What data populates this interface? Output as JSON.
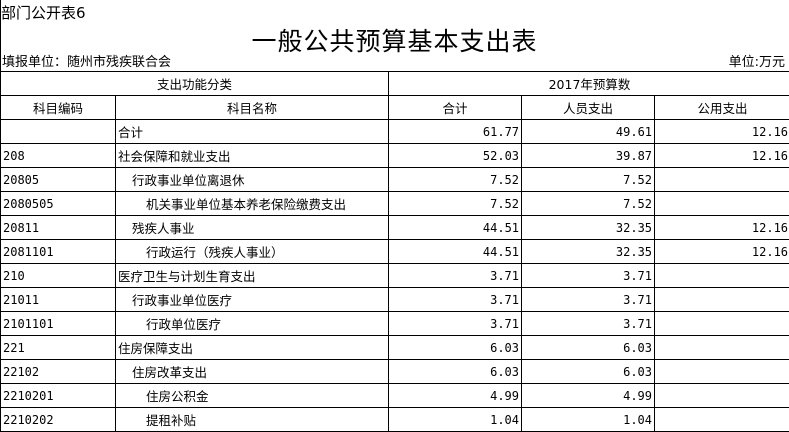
{
  "corner_label": "部门公开表6",
  "title": "一般公共预算基本支出表",
  "unit_left": "填报单位：随州市残疾联合会",
  "unit_right": "单位:万元",
  "header": {
    "group_left": "支出功能分类",
    "group_right": "2017年预算数",
    "columns": [
      "科目编码",
      "科目名称",
      "合计",
      "人员支出",
      "公用支出"
    ]
  },
  "rows": [
    {
      "code": "",
      "name": "合计",
      "level": 0,
      "total": "61.77",
      "personnel": "49.61",
      "public": "12.16"
    },
    {
      "code": "208",
      "name": "社会保障和就业支出",
      "level": 0,
      "total": "52.03",
      "personnel": "39.87",
      "public": "12.16"
    },
    {
      "code": "20805",
      "name": "行政事业单位离退休",
      "level": 1,
      "total": "7.52",
      "personnel": "7.52",
      "public": ""
    },
    {
      "code": "2080505",
      "name": "机关事业单位基本养老保险缴费支出",
      "level": 2,
      "total": "7.52",
      "personnel": "7.52",
      "public": ""
    },
    {
      "code": "20811",
      "name": "残疾人事业",
      "level": 1,
      "total": "44.51",
      "personnel": "32.35",
      "public": "12.16"
    },
    {
      "code": "2081101",
      "name": "行政运行（残疾人事业）",
      "level": 2,
      "total": "44.51",
      "personnel": "32.35",
      "public": "12.16"
    },
    {
      "code": "210",
      "name": "医疗卫生与计划生育支出",
      "level": 0,
      "total": "3.71",
      "personnel": "3.71",
      "public": ""
    },
    {
      "code": "21011",
      "name": "行政事业单位医疗",
      "level": 1,
      "total": "3.71",
      "personnel": "3.71",
      "public": ""
    },
    {
      "code": "2101101",
      "name": "行政单位医疗",
      "level": 2,
      "total": "3.71",
      "personnel": "3.71",
      "public": ""
    },
    {
      "code": "221",
      "name": "住房保障支出",
      "level": 0,
      "total": "6.03",
      "personnel": "6.03",
      "public": ""
    },
    {
      "code": "22102",
      "name": "住房改革支出",
      "level": 1,
      "total": "6.03",
      "personnel": "6.03",
      "public": ""
    },
    {
      "code": "2210201",
      "name": "住房公积金",
      "level": 2,
      "total": "4.99",
      "personnel": "4.99",
      "public": ""
    },
    {
      "code": "2210202",
      "name": "提租补贴",
      "level": 2,
      "total": "1.04",
      "personnel": "1.04",
      "public": ""
    }
  ]
}
